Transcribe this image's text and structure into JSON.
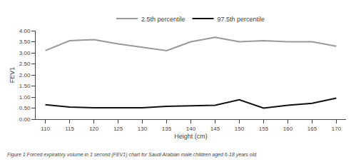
{
  "chart_data": {
    "type": "line",
    "x": [
      110,
      115,
      120,
      125,
      130,
      135,
      140,
      145,
      150,
      155,
      160,
      165,
      170
    ],
    "series": [
      {
        "name": "2.5th percentile",
        "color": "#999999",
        "values": [
          3.1,
          3.55,
          3.6,
          3.4,
          3.25,
          3.1,
          3.5,
          3.7,
          3.5,
          3.55,
          3.5,
          3.5,
          3.3
        ]
      },
      {
        "name": "97.5th percentile",
        "color": "#111111",
        "values": [
          0.65,
          0.55,
          0.52,
          0.52,
          0.52,
          0.58,
          0.6,
          0.63,
          0.88,
          0.5,
          0.63,
          0.72,
          0.95
        ]
      }
    ],
    "x_label": "Height (cm)",
    "y_label": "FEV1",
    "xlim": [
      108,
      172
    ],
    "xticks": [
      110,
      115,
      120,
      125,
      130,
      135,
      140,
      145,
      150,
      155,
      160,
      165,
      170
    ],
    "ylim": [
      0.0,
      4.0
    ],
    "yticks": [
      {
        "value": 0.0,
        "label": "0.00"
      },
      {
        "value": 0.5,
        "label": "0.50"
      },
      {
        "value": 1.0,
        "label": "1.00"
      },
      {
        "value": 1.5,
        "label": "1.50"
      },
      {
        "value": 2.0,
        "label": "2.00"
      },
      {
        "value": 2.5,
        "label": "2.50"
      },
      {
        "value": 3.0,
        "label": "3.00"
      },
      {
        "value": 3.5,
        "label": "3.50"
      },
      {
        "value": 4.0,
        "label": "4.00"
      }
    ],
    "annotations": [
      "Figure 1 Forced expiratory volume in 1 second (FEV1) chart for Saudi Arabian male children aged 6-18 years old"
    ],
    "legend": "top",
    "grid": false
  }
}
